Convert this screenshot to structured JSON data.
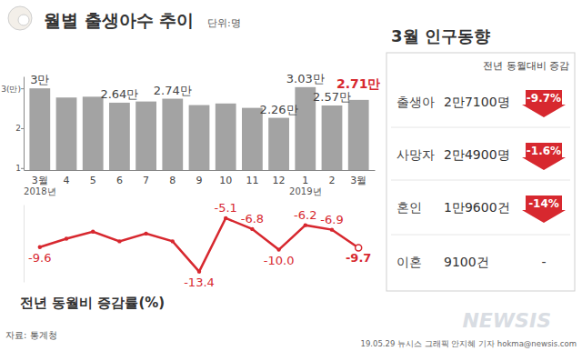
{
  "chart_data": [
    {
      "type": "bar",
      "title": "월별 출생아수 추이",
      "subtitle": "단위:명",
      "categories": [
        "3월",
        "4",
        "5",
        "6",
        "7",
        "8",
        "9",
        "10",
        "11",
        "12",
        "1",
        "2",
        "3월"
      ],
      "values": [
        3.0,
        2.77,
        2.79,
        2.64,
        2.67,
        2.74,
        2.58,
        2.62,
        2.51,
        2.26,
        3.03,
        2.57,
        2.71
      ],
      "value_labels": [
        "3만",
        null,
        null,
        "2.64만",
        null,
        "2.74만",
        null,
        null,
        null,
        "2.26만",
        "3.03만",
        "2.57만",
        "2.71만"
      ],
      "data_labels": true,
      "color": "#a3a3a3",
      "ylim": [
        0.95,
        3.3
      ],
      "yticks": [
        {
          "value": 3,
          "label": "3(만)"
        },
        2,
        1
      ],
      "grid": false,
      "annotations": [
        {
          "text": "2018년",
          "category": 0
        },
        {
          "text": "2019년",
          "category": 10
        }
      ]
    },
    {
      "type": "line",
      "title": "전년 동월비 증감률(%)",
      "categories": [
        "3월",
        "4",
        "5",
        "6",
        "7",
        "8",
        "9",
        "10",
        "11",
        "12",
        "1",
        "2",
        "3월"
      ],
      "values": [
        -9.6,
        -8.3,
        -7.2,
        -8.7,
        -7.5,
        -8.7,
        -13.4,
        -5.1,
        -6.8,
        -10.0,
        -6.2,
        -6.9,
        -9.7
      ],
      "value_labels": [
        "-9.6",
        null,
        null,
        null,
        null,
        null,
        "-13.4",
        "-5.1",
        "-6.8",
        "-10.0",
        "-6.2",
        "-6.9",
        "-9.7"
      ],
      "data_labels": true,
      "color": "#d7282f",
      "marker": "circle",
      "ylim": [
        -15,
        -3
      ],
      "tick_labels": false
    }
  ],
  "panel": {
    "title": "3월 인구동향",
    "header": "전년 동월대비 증감",
    "rows": [
      {
        "label": "출생아",
        "count": "2만7100명",
        "change": -9.7,
        "change_label": "-9.7%"
      },
      {
        "label": "사망자",
        "count": "2만4900명",
        "change": -1.6,
        "change_label": "-1.6%"
      },
      {
        "label": "혼인",
        "count": "1만9600건",
        "change": -14,
        "change_label": "-14%"
      },
      {
        "label": "이혼",
        "count": "9100건",
        "change": null,
        "change_label": "-"
      }
    ]
  },
  "source": "자료: 통계청",
  "credit": "19.05.29 뉴시스 그래픽 안지혜 기자 hokma@newsis.com",
  "watermark": "NEWSIS"
}
